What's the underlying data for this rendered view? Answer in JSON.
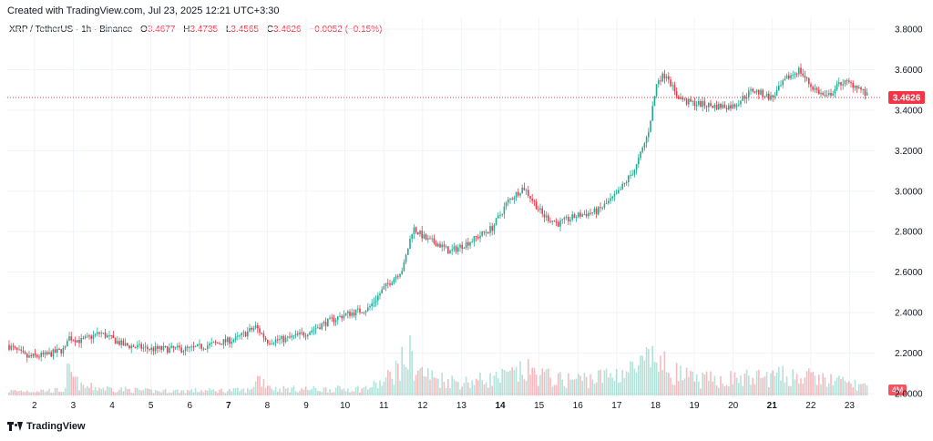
{
  "header": {
    "credit": "Created with TradingView.com, Jul 23, 2025 12:21 UTC+3:30",
    "symbol": "XRP / TetherUS · 1h · Binance",
    "open_label": "O",
    "open": "3.4677",
    "high_label": "H",
    "high": "3.4735",
    "low_label": "L",
    "low": "3.4565",
    "close_label": "C",
    "close": "3.4626",
    "change": "−0.0052 (−0.15%)"
  },
  "footer": {
    "brand": "TradingView"
  },
  "colors": {
    "up": "#22ab94",
    "down": "#f23645",
    "grid": "#f0f3fa",
    "axis_text": "#131722"
  },
  "chart_data": {
    "type": "candlestick",
    "title": "XRP / TetherUS · 1h · Binance",
    "ylim": [
      2.1,
      3.85
    ],
    "y_ticks": [
      "3.8000",
      "3.6000",
      "3.4000",
      "3.2000",
      "3.0000",
      "2.8000",
      "2.6000",
      "2.4000",
      "2.2000",
      "2.0000"
    ],
    "y_tick_values": [
      3.8,
      3.6,
      3.4,
      3.2,
      3.0,
      2.8,
      2.6,
      2.4,
      2.2,
      2.0
    ],
    "x_ticks": [
      "2",
      "3",
      "4",
      "5",
      "6",
      "7",
      "8",
      "9",
      "10",
      "11",
      "12",
      "13",
      "14",
      "15",
      "16",
      "17",
      "18",
      "19",
      "20",
      "21",
      "22",
      "23"
    ],
    "x_tick_days": [
      2,
      3,
      4,
      5,
      6,
      7,
      8,
      9,
      10,
      11,
      12,
      13,
      14,
      15,
      16,
      17,
      18,
      19,
      20,
      21,
      22,
      23
    ],
    "bold_ticks": [
      "7",
      "14",
      "21"
    ],
    "xlim_days": [
      1.3,
      23.6
    ],
    "last_price": 3.4626,
    "last_price_label": "3.4626",
    "volume_label": "4M",
    "grid": true,
    "legend": "top-left",
    "price_path": [
      [
        1.3,
        2.24
      ],
      [
        1.8,
        2.18
      ],
      [
        2.3,
        2.19
      ],
      [
        2.8,
        2.22
      ],
      [
        2.85,
        2.28
      ],
      [
        3.2,
        2.26
      ],
      [
        3.7,
        2.3
      ],
      [
        4.3,
        2.24
      ],
      [
        5.0,
        2.22
      ],
      [
        6.0,
        2.22
      ],
      [
        6.5,
        2.24
      ],
      [
        7.2,
        2.27
      ],
      [
        7.7,
        2.33
      ],
      [
        8.0,
        2.26
      ],
      [
        8.5,
        2.27
      ],
      [
        9.0,
        2.3
      ],
      [
        9.5,
        2.35
      ],
      [
        10.0,
        2.39
      ],
      [
        10.6,
        2.42
      ],
      [
        11.0,
        2.52
      ],
      [
        11.5,
        2.62
      ],
      [
        11.75,
        2.82
      ],
      [
        12.1,
        2.76
      ],
      [
        12.4,
        2.74
      ],
      [
        12.7,
        2.7
      ],
      [
        13.3,
        2.76
      ],
      [
        13.8,
        2.82
      ],
      [
        14.2,
        2.95
      ],
      [
        14.6,
        3.02
      ],
      [
        15.1,
        2.88
      ],
      [
        15.5,
        2.84
      ],
      [
        16.0,
        2.88
      ],
      [
        16.5,
        2.9
      ],
      [
        17.0,
        2.98
      ],
      [
        17.5,
        3.12
      ],
      [
        17.8,
        3.28
      ],
      [
        18.05,
        3.55
      ],
      [
        18.3,
        3.58
      ],
      [
        18.5,
        3.48
      ],
      [
        18.8,
        3.44
      ],
      [
        19.5,
        3.42
      ],
      [
        20.0,
        3.42
      ],
      [
        20.5,
        3.5
      ],
      [
        21.0,
        3.46
      ],
      [
        21.4,
        3.56
      ],
      [
        21.7,
        3.6
      ],
      [
        22.0,
        3.52
      ],
      [
        22.4,
        3.46
      ],
      [
        22.8,
        3.54
      ],
      [
        23.2,
        3.52
      ],
      [
        23.5,
        3.46
      ]
    ],
    "volume_path": [
      [
        1.3,
        0.1
      ],
      [
        2.8,
        0.12
      ],
      [
        2.85,
        0.55
      ],
      [
        3.2,
        0.2
      ],
      [
        5.0,
        0.1
      ],
      [
        7.6,
        0.12
      ],
      [
        7.7,
        0.45
      ],
      [
        8.2,
        0.15
      ],
      [
        9.5,
        0.14
      ],
      [
        10.5,
        0.16
      ],
      [
        11.0,
        0.3
      ],
      [
        11.7,
        0.95
      ],
      [
        11.8,
        0.6
      ],
      [
        12.3,
        0.4
      ],
      [
        13.0,
        0.3
      ],
      [
        14.0,
        0.4
      ],
      [
        14.7,
        0.55
      ],
      [
        15.5,
        0.35
      ],
      [
        16.5,
        0.4
      ],
      [
        17.5,
        0.6
      ],
      [
        18.0,
        0.85
      ],
      [
        18.3,
        0.6
      ],
      [
        19.0,
        0.35
      ],
      [
        20.5,
        0.4
      ],
      [
        21.5,
        0.45
      ],
      [
        22.5,
        0.35
      ],
      [
        23.5,
        0.2
      ]
    ]
  }
}
